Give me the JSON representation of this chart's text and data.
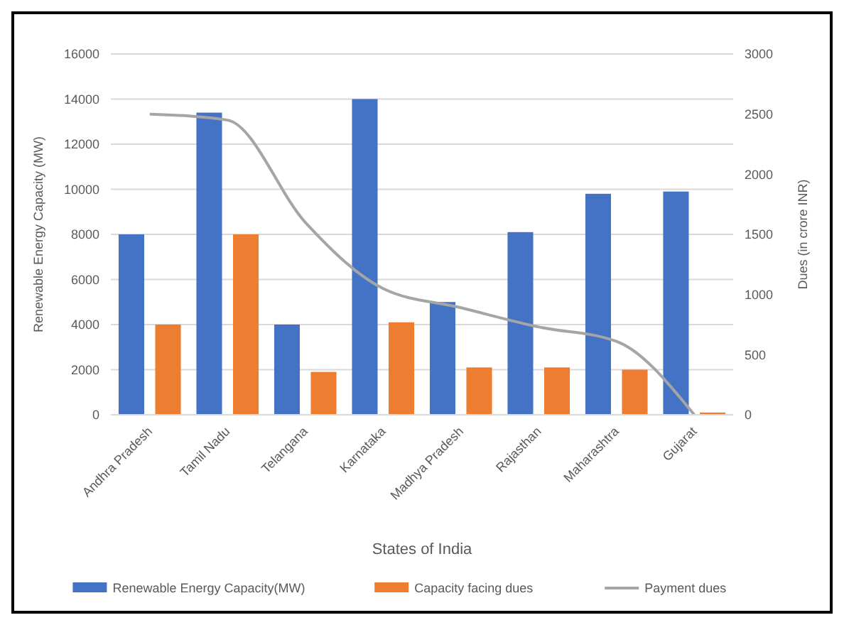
{
  "chart_data": {
    "type": "bar",
    "xlabel": "States of India",
    "ylabel": "Renewable Energy Capacity (MW)",
    "y2label": "Dues (in crore INR)",
    "categories": [
      "Andhra Pradesh",
      "Tamil Nadu",
      "Telangana",
      "Karnataka",
      "Madhya Pradesh",
      "Rajasthan",
      "Maharashtra",
      "Gujarat"
    ],
    "series": [
      {
        "name": "Renewable Energy Capacity(MW)",
        "color": "#4472c4",
        "values": [
          8000,
          13400,
          4000,
          14000,
          5000,
          8100,
          9800,
          9900
        ]
      },
      {
        "name": "Capacity facing dues",
        "color": "#ed7d31",
        "values": [
          4000,
          8000,
          1900,
          4100,
          2100,
          2100,
          2000,
          100
        ]
      },
      {
        "name": "Payment dues",
        "type": "line",
        "axis": "y2",
        "color": "#a5a5a5",
        "values": [
          2500,
          2450,
          1600,
          1050,
          890,
          730,
          610,
          0
        ]
      }
    ],
    "ylim": [
      0,
      16000
    ],
    "yticks": [
      0,
      2000,
      4000,
      6000,
      8000,
      10000,
      12000,
      14000,
      16000
    ],
    "y2lim": [
      0,
      3000
    ],
    "y2ticks": [
      0,
      500,
      1000,
      1500,
      2000,
      2500,
      3000
    ],
    "grid": "y",
    "legend": "bottom"
  }
}
